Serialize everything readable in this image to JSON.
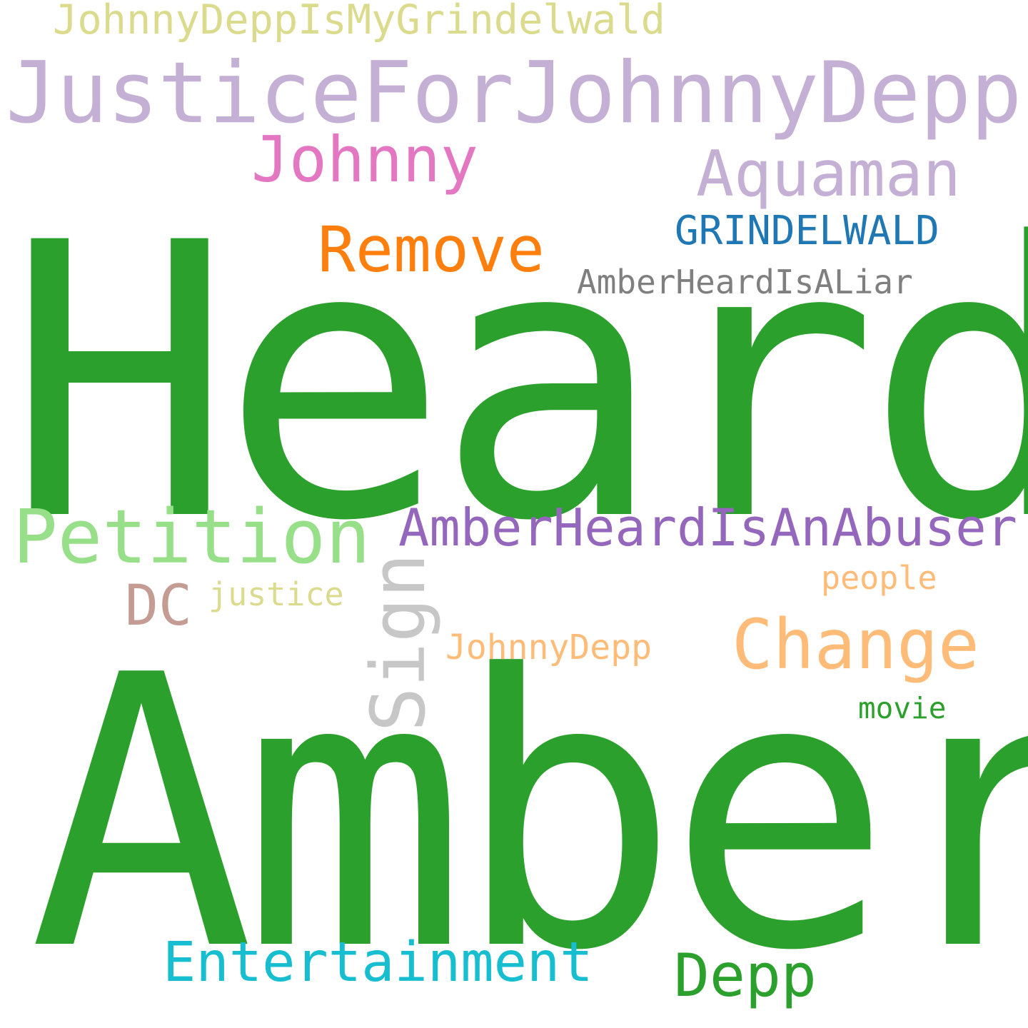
{
  "words": [
    {
      "id": "heard",
      "text": "Heard",
      "color": "#2ca02c"
    },
    {
      "id": "amber",
      "text": "Amber",
      "color": "#2ca02c"
    },
    {
      "id": "justice-for-johnny-depp",
      "text": "JusticeForJohnnyDepp",
      "color": "#c5b0d5"
    },
    {
      "id": "johnny-depp-is-my-grindelwald",
      "text": "JohnnyDeppIsMyGrindelwald",
      "color": "#dbdb8d"
    },
    {
      "id": "johnny",
      "text": "Johnny",
      "color": "#e377c2"
    },
    {
      "id": "aquaman",
      "text": "Aquaman",
      "color": "#c5b0d5"
    },
    {
      "id": "grindelwald",
      "text": "GRINDELWALD",
      "color": "#1f77b4"
    },
    {
      "id": "remove",
      "text": "Remove",
      "color": "#ff7f0e"
    },
    {
      "id": "amber-heard-is-a-liar",
      "text": "AmberHeardIsALiar",
      "color": "#7f7f7f"
    },
    {
      "id": "petition",
      "text": "Petition",
      "color": "#98df8a"
    },
    {
      "id": "amber-heard-is-an-abuser",
      "text": "AmberHeardIsAnAbuser",
      "color": "#9467bd"
    },
    {
      "id": "sign",
      "text": "Sign",
      "color": "#c7c7c7"
    },
    {
      "id": "people",
      "text": "people",
      "color": "#ffbb78"
    },
    {
      "id": "dc",
      "text": "DC",
      "color": "#c49c94"
    },
    {
      "id": "justice",
      "text": "justice",
      "color": "#dbdb8d"
    },
    {
      "id": "change",
      "text": "Change",
      "color": "#ffbb78"
    },
    {
      "id": "johnny-depp",
      "text": "JohnnyDepp",
      "color": "#ffbb78"
    },
    {
      "id": "movie",
      "text": "movie",
      "color": "#2ca02c"
    },
    {
      "id": "entertainment",
      "text": "Entertainment",
      "color": "#17becf"
    },
    {
      "id": "depp",
      "text": "Depp",
      "color": "#2ca02c"
    }
  ]
}
